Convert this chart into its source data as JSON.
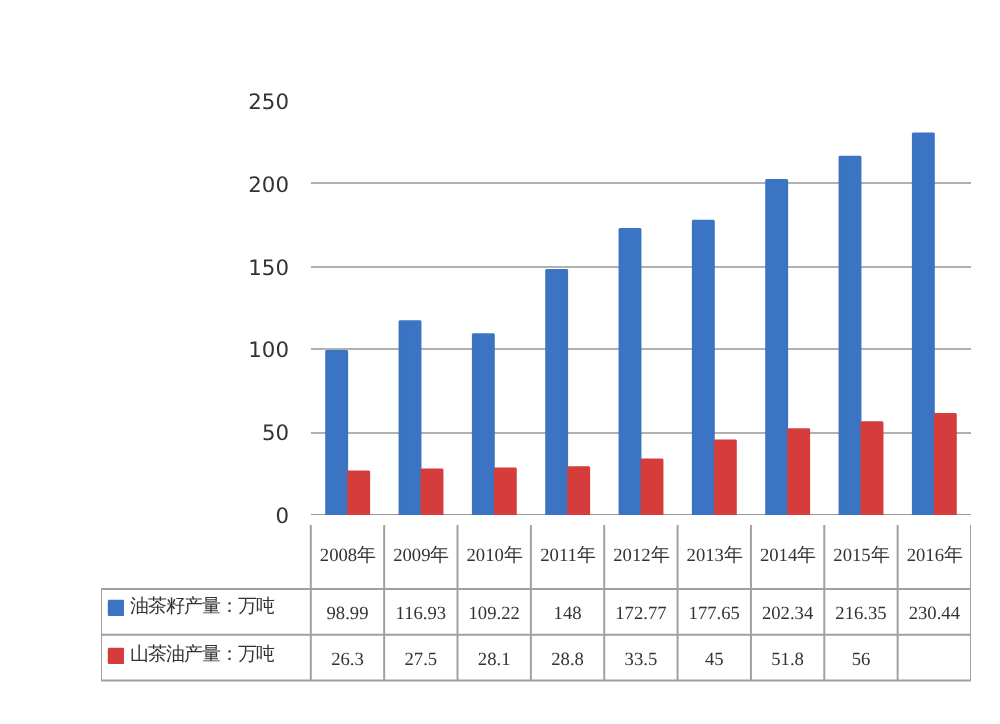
{
  "chart_data": {
    "type": "bar",
    "categories": [
      "2008年",
      "2009年",
      "2010年",
      "2011年",
      "2012年",
      "2013年",
      "2014年",
      "2015年",
      "2016年"
    ],
    "series": [
      {
        "name": "油茶籽产量：万吨",
        "color": "#3b74c2",
        "values": [
          98.99,
          116.93,
          109.22,
          148,
          172.77,
          177.65,
          202.34,
          216.35,
          230.44
        ],
        "value_labels": [
          "98.99",
          "116.93",
          "109.22",
          "148",
          "172.77",
          "177.65",
          "202.34",
          "216.35",
          "230.44"
        ]
      },
      {
        "name": "山茶油产量：万吨",
        "color": "#d43d3b",
        "values": [
          26.3,
          27.5,
          28.1,
          28.8,
          33.5,
          45,
          51.8,
          56,
          61
        ],
        "value_labels": [
          "26.3",
          "27.5",
          "28.1",
          "28.8",
          "33.5",
          "45",
          "51.8",
          "56",
          null
        ]
      }
    ],
    "ylim": [
      0,
      250
    ],
    "yticks": [
      0,
      50,
      100,
      150,
      200,
      250
    ],
    "grid": "y",
    "legend": "bottom"
  }
}
